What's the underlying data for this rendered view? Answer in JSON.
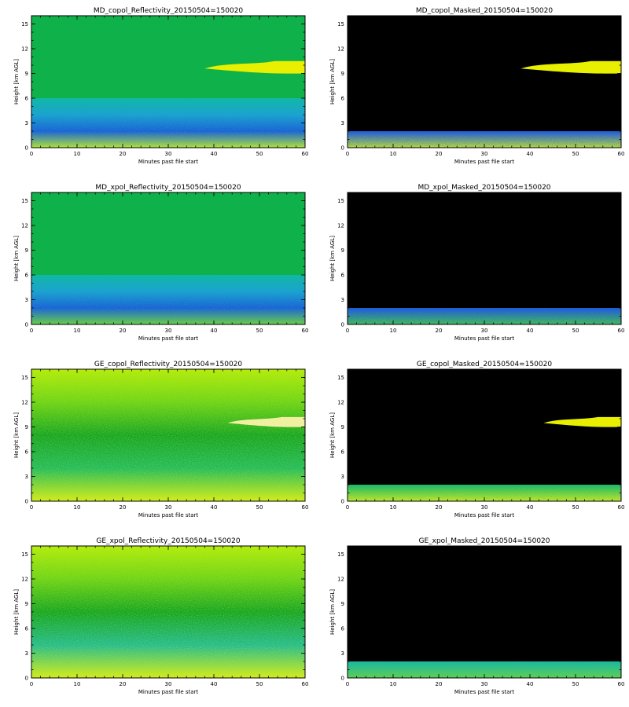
{
  "chart_data": [
    {
      "type": "heatmap",
      "title": "MD_copol_Reflectivity_20150504=150020",
      "xlabel": "Minutes past file start",
      "ylabel": "Height [km AGL]",
      "xlim": [
        0,
        60
      ],
      "ylim": [
        0,
        16
      ],
      "xticks": [
        0,
        10,
        20,
        30,
        40,
        50,
        60
      ],
      "yticks": [
        0,
        3,
        6,
        9,
        12,
        15
      ],
      "xtick_labels": [
        "0",
        "10",
        "20",
        "30",
        "40",
        "50",
        "60"
      ],
      "ytick_labels": [
        "0",
        "3",
        "6",
        "9",
        "12",
        "15"
      ],
      "background": "#0fb24a",
      "features": [
        {
          "kind": "gradient",
          "from_height": 0,
          "to_height": 6,
          "colors": [
            "#c8e82a",
            "#1e5adc",
            "#1ea0d6",
            "#12b7a6"
          ]
        },
        {
          "kind": "cloud",
          "x_start": 38,
          "x_end": 60,
          "height_bottom": 9,
          "height_top": 10.5,
          "color": "#e8f000"
        }
      ]
    },
    {
      "type": "heatmap",
      "title": "MD_copol_Masked_20150504=150020",
      "xlabel": "Minutes past file start",
      "ylabel": "Height [km AGL]",
      "xlim": [
        0,
        60
      ],
      "ylim": [
        0,
        16
      ],
      "xticks": [
        0,
        10,
        20,
        30,
        40,
        50,
        60
      ],
      "yticks": [
        0,
        3,
        6,
        9,
        12,
        15
      ],
      "xtick_labels": [
        "0",
        "10",
        "20",
        "30",
        "40",
        "50",
        "60"
      ],
      "ytick_labels": [
        "0",
        "3",
        "6",
        "9",
        "12",
        "15"
      ],
      "background": "#000000",
      "features": [
        {
          "kind": "gradient",
          "from_height": 0,
          "to_height": 2,
          "colors": [
            "#c8e82a",
            "#1e5adc"
          ]
        },
        {
          "kind": "cloud",
          "x_start": 38,
          "x_end": 60,
          "height_bottom": 9,
          "height_top": 10.5,
          "color": "#e8f000"
        }
      ]
    },
    {
      "type": "heatmap",
      "title": "MD_xpol_Reflectivity_20150504=150020",
      "xlabel": "Minutes past file start",
      "ylabel": "Height [km AGL]",
      "xlim": [
        0,
        60
      ],
      "ylim": [
        0,
        16
      ],
      "xticks": [
        0,
        10,
        20,
        30,
        40,
        50,
        60
      ],
      "yticks": [
        0,
        3,
        6,
        9,
        12,
        15
      ],
      "xtick_labels": [
        "0",
        "10",
        "20",
        "30",
        "40",
        "50",
        "60"
      ],
      "ytick_labels": [
        "0",
        "3",
        "6",
        "9",
        "12",
        "15"
      ],
      "background": "#0fb24a",
      "features": [
        {
          "kind": "gradient",
          "from_height": 0,
          "to_height": 6,
          "colors": [
            "#7ad23a",
            "#1e5adc",
            "#1ea0d6",
            "#12b7a6"
          ]
        }
      ]
    },
    {
      "type": "heatmap",
      "title": "MD_xpol_Masked_20150504=150020",
      "xlabel": "Minutes past file start",
      "ylabel": "Height [km AGL]",
      "xlim": [
        0,
        60
      ],
      "ylim": [
        0,
        16
      ],
      "xticks": [
        0,
        10,
        20,
        30,
        40,
        50,
        60
      ],
      "yticks": [
        0,
        3,
        6,
        9,
        12,
        15
      ],
      "xtick_labels": [
        "0",
        "10",
        "20",
        "30",
        "40",
        "50",
        "60"
      ],
      "ytick_labels": [
        "0",
        "3",
        "6",
        "9",
        "12",
        "15"
      ],
      "background": "#000000",
      "features": [
        {
          "kind": "gradient",
          "from_height": 0,
          "to_height": 2,
          "colors": [
            "#4ac84a",
            "#1e5adc"
          ]
        }
      ]
    },
    {
      "type": "heatmap",
      "title": "GE_copol_Reflectivity_20150504=150020",
      "xlabel": "Minutes past file start",
      "ylabel": "Height [km AGL]",
      "xlim": [
        0,
        60
      ],
      "ylim": [
        0,
        16
      ],
      "xticks": [
        0,
        10,
        20,
        30,
        40,
        50,
        60
      ],
      "yticks": [
        0,
        3,
        6,
        9,
        12,
        15
      ],
      "xtick_labels": [
        "0",
        "10",
        "20",
        "30",
        "40",
        "50",
        "60"
      ],
      "ytick_labels": [
        "0",
        "3",
        "6",
        "9",
        "12",
        "15"
      ],
      "background": "#9ae01e",
      "features": [
        {
          "kind": "gradient",
          "from_height": 0,
          "to_height": 16,
          "colors": [
            "#d8ec20",
            "#1ab86a",
            "#0ca02c",
            "#6ad21e",
            "#b4ec10"
          ]
        },
        {
          "kind": "cloud",
          "x_start": 43,
          "x_end": 60,
          "height_bottom": 9,
          "height_top": 10.2,
          "color": "#f0f0a0"
        }
      ]
    },
    {
      "type": "heatmap",
      "title": "GE_copol_Masked_20150504=150020",
      "xlabel": "Minutes past file start",
      "ylabel": "Height [km AGL]",
      "xlim": [
        0,
        60
      ],
      "ylim": [
        0,
        16
      ],
      "xticks": [
        0,
        10,
        20,
        30,
        40,
        50,
        60
      ],
      "yticks": [
        0,
        3,
        6,
        9,
        12,
        15
      ],
      "xtick_labels": [
        "0",
        "10",
        "20",
        "30",
        "40",
        "50",
        "60"
      ],
      "ytick_labels": [
        "0",
        "3",
        "6",
        "9",
        "12",
        "15"
      ],
      "background": "#000000",
      "features": [
        {
          "kind": "gradient",
          "from_height": 0,
          "to_height": 2,
          "colors": [
            "#d8ec20",
            "#1ab86a"
          ]
        },
        {
          "kind": "cloud",
          "x_start": 43,
          "x_end": 60,
          "height_bottom": 9,
          "height_top": 10.2,
          "color": "#e8f000"
        }
      ]
    },
    {
      "type": "heatmap",
      "title": "GE_xpol_Reflectivity_20150504=150020",
      "xlabel": "Minutes past file start",
      "ylabel": "Height [km AGL]",
      "xlim": [
        0,
        60
      ],
      "ylim": [
        0,
        16
      ],
      "xticks": [
        0,
        10,
        20,
        30,
        40,
        50,
        60
      ],
      "yticks": [
        0,
        3,
        6,
        9,
        12,
        15
      ],
      "xtick_labels": [
        "0",
        "10",
        "20",
        "30",
        "40",
        "50",
        "60"
      ],
      "ytick_labels": [
        "0",
        "3",
        "6",
        "9",
        "12",
        "15"
      ],
      "background": "#9ae01e",
      "features": [
        {
          "kind": "gradient",
          "from_height": 0,
          "to_height": 16,
          "colors": [
            "#d8ec20",
            "#1ab8a0",
            "#0ca02c",
            "#6ad21e",
            "#b4ec10"
          ]
        }
      ]
    },
    {
      "type": "heatmap",
      "title": "GE_xpol_Masked_20150504=150020",
      "xlabel": "Minutes past file start",
      "ylabel": "Height [km AGL]",
      "xlim": [
        0,
        60
      ],
      "ylim": [
        0,
        16
      ],
      "xticks": [
        0,
        10,
        20,
        30,
        40,
        50,
        60
      ],
      "yticks": [
        0,
        3,
        6,
        9,
        12,
        15
      ],
      "xtick_labels": [
        "0",
        "10",
        "20",
        "30",
        "40",
        "50",
        "60"
      ],
      "ytick_labels": [
        "0",
        "3",
        "6",
        "9",
        "12",
        "15"
      ],
      "background": "#000000",
      "features": [
        {
          "kind": "gradient",
          "from_height": 0,
          "to_height": 2,
          "colors": [
            "#6ad24a",
            "#1ab8a0"
          ]
        }
      ]
    }
  ]
}
